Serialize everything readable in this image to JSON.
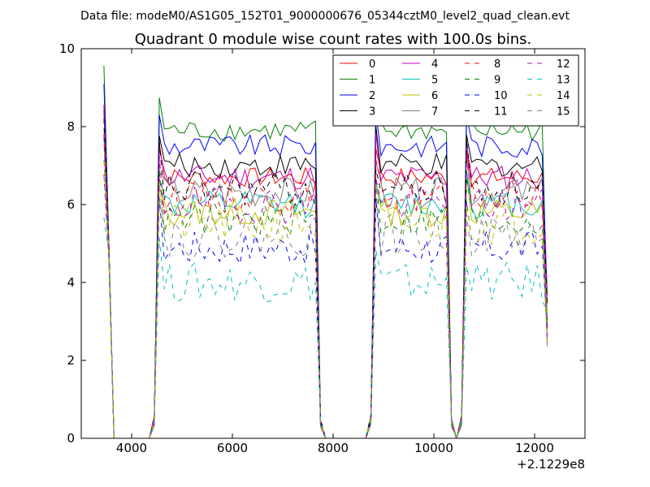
{
  "figure": {
    "suptitle": "Data file: modeM0/AS1G05_152T01_9000000676_05344cztM0_level2_quad_clean.evt",
    "x_offset_text": "+2.1229e8"
  },
  "chart_data": {
    "type": "line",
    "title": "Quadrant 0 module wise count rates with 100.0s bins.",
    "xlabel": "",
    "ylabel": "",
    "xlim": [
      3000,
      13000
    ],
    "ylim": [
      0,
      10
    ],
    "x_ticks": [
      4000,
      6000,
      8000,
      10000,
      12000
    ],
    "x_tick_labels": [
      "4000",
      "6000",
      "8000",
      "10000",
      "12000"
    ],
    "y_ticks": [
      0,
      2,
      4,
      6,
      8,
      10
    ],
    "y_tick_labels": [
      "0",
      "2",
      "4",
      "6",
      "8",
      "10"
    ],
    "grid": false,
    "legend_position": "upper right",
    "legend_columns": 4,
    "bin_width": 100,
    "segments": [
      {
        "start": 3450,
        "end": 4350
      },
      {
        "start": 4550,
        "end": 7650
      },
      {
        "start": 8850,
        "end": 10250
      },
      {
        "start": 10650,
        "end": 12150
      }
    ],
    "series": [
      {
        "name": "0",
        "color": "#ff0000",
        "style": "solid",
        "level": 6.7
      },
      {
        "name": "1",
        "color": "#008000",
        "style": "solid",
        "level": 7.9
      },
      {
        "name": "2",
        "color": "#0000ff",
        "style": "solid",
        "level": 7.5
      },
      {
        "name": "3",
        "color": "#000000",
        "style": "solid",
        "level": 7.0
      },
      {
        "name": "4",
        "color": "#bf00bf",
        "style": "solid",
        "level": 6.7
      },
      {
        "name": "5",
        "color": "#00bfbf",
        "style": "solid",
        "level": 6.0
      },
      {
        "name": "6",
        "color": "#bfbf00",
        "style": "solid",
        "level": 5.8
      },
      {
        "name": "7",
        "color": "#808080",
        "style": "solid",
        "level": 6.3
      },
      {
        "name": "8",
        "color": "#ff0000",
        "style": "dashed",
        "level": 6.2
      },
      {
        "name": "9",
        "color": "#008000",
        "style": "dashed",
        "level": 5.6
      },
      {
        "name": "10",
        "color": "#0000ff",
        "style": "dashed",
        "level": 4.9
      },
      {
        "name": "11",
        "color": "#000000",
        "style": "dashed",
        "level": 6.4
      },
      {
        "name": "12",
        "color": "#bf00bf",
        "style": "dashed",
        "level": 6.0
      },
      {
        "name": "13",
        "color": "#00bfbf",
        "style": "dashed",
        "level": 4.0
      },
      {
        "name": "14",
        "color": "#bfbf00",
        "style": "dashed",
        "level": 5.5
      },
      {
        "name": "15",
        "color": "#808080",
        "style": "dashed",
        "level": 5.2
      }
    ]
  }
}
